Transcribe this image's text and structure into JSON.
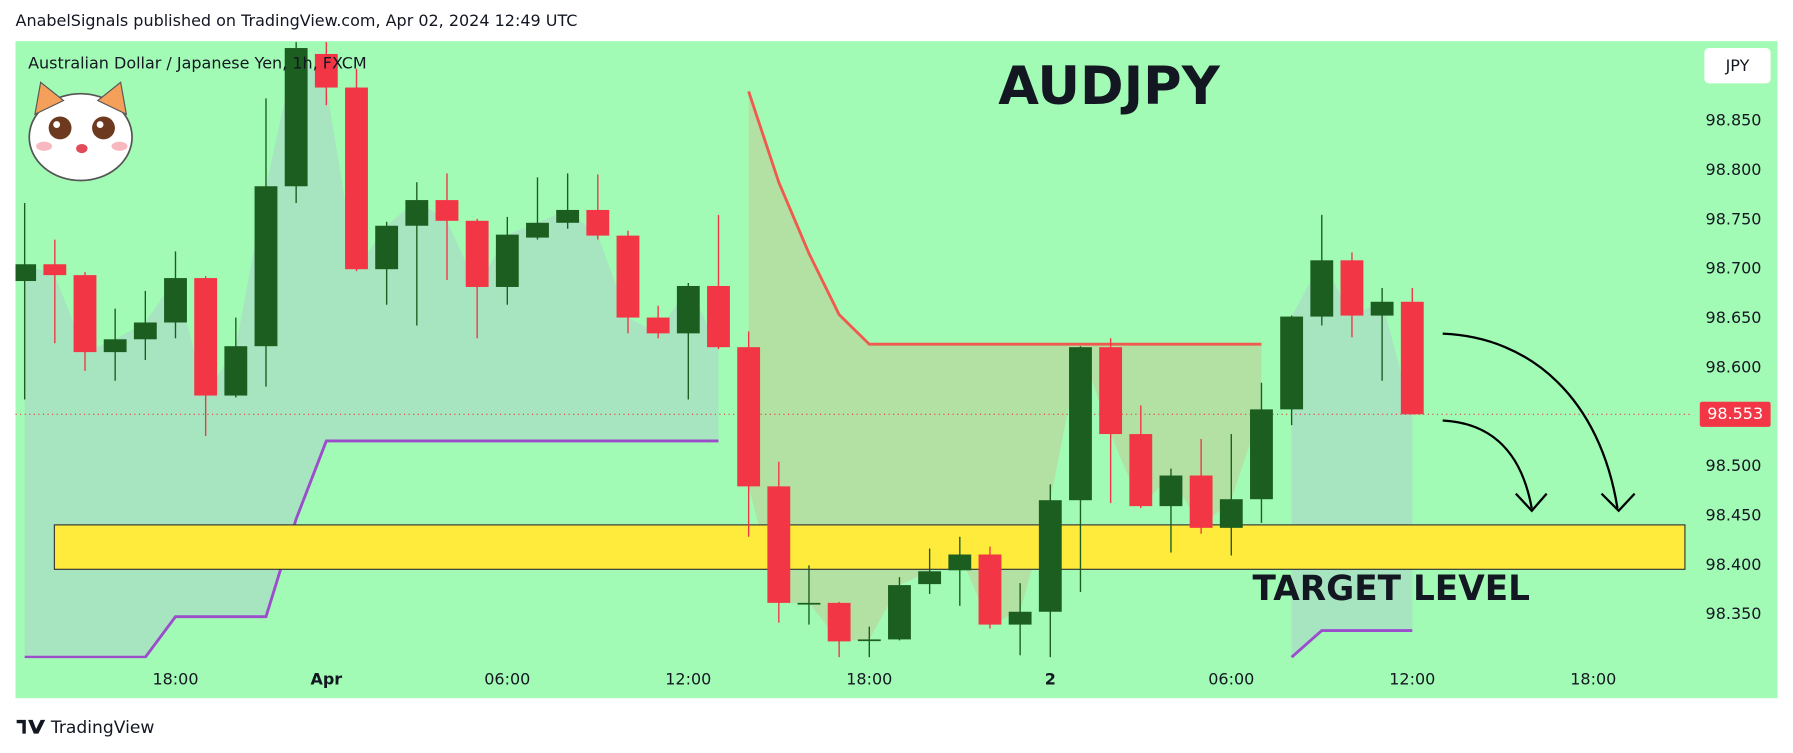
{
  "header": {
    "text": "AnabelSignals published on TradingView.com, Apr 02, 2024 12:49 UTC"
  },
  "footer": {
    "brand": "TradingView"
  },
  "chart_data": {
    "type": "candlestick",
    "title": "AUDJPY",
    "symbol": "Australian Dollar / Japanese Yen, 1h, FXCM",
    "currency": "JPY",
    "categories": [
      null,
      null,
      null,
      null,
      null,
      "18:00",
      null,
      null,
      null,
      null,
      "Apr",
      null,
      null,
      null,
      null,
      null,
      "06:00",
      null,
      null,
      null,
      null,
      null,
      "12:00",
      null,
      null,
      null,
      null,
      null,
      "18:00",
      null,
      null,
      null,
      null,
      null,
      "2",
      null,
      null,
      null,
      null,
      null,
      "06:00",
      null,
      null,
      null,
      null,
      null,
      "12:00",
      null,
      null,
      null,
      null,
      null,
      "18:00",
      null,
      null
    ],
    "open": [
      98.688,
      98.705,
      98.694,
      98.616,
      98.629,
      98.646,
      98.691,
      98.572,
      98.622,
      98.784,
      98.918,
      98.884,
      98.7,
      98.744,
      98.77,
      98.749,
      98.682,
      98.732,
      98.747,
      98.76,
      98.734,
      98.651,
      98.635,
      98.683,
      98.621,
      98.48,
      98.362,
      98.362,
      98.325,
      98.325,
      98.381,
      98.395,
      98.411,
      98.34,
      98.353,
      98.466,
      98.621,
      98.533,
      98.46,
      98.491,
      98.438,
      98.467,
      98.558,
      98.652,
      98.709,
      98.653,
      98.667,
      null,
      null,
      null,
      null,
      null,
      null,
      null,
      null
    ],
    "high": [
      98.767,
      98.73,
      98.697,
      98.66,
      98.678,
      98.718,
      98.693,
      98.651,
      98.873,
      98.93,
      98.93,
      98.903,
      98.748,
      98.788,
      98.797,
      98.751,
      98.753,
      98.793,
      98.797,
      98.796,
      98.739,
      98.663,
      98.686,
      98.755,
      98.637,
      98.505,
      98.4,
      98.363,
      98.338,
      98.388,
      98.417,
      98.429,
      98.419,
      98.382,
      98.482,
      98.622,
      98.63,
      98.562,
      98.498,
      98.528,
      98.533,
      98.585,
      98.653,
      98.755,
      98.717,
      98.681,
      98.681,
      null,
      null,
      null,
      null,
      null,
      null,
      null,
      null
    ],
    "low": [
      98.568,
      98.625,
      98.597,
      98.587,
      98.608,
      98.63,
      98.531,
      98.57,
      98.581,
      98.767,
      98.866,
      98.698,
      98.664,
      98.643,
      98.689,
      98.63,
      98.664,
      98.73,
      98.741,
      98.73,
      98.635,
      98.63,
      98.568,
      98.619,
      98.429,
      98.342,
      98.34,
      98.307,
      98.307,
      98.324,
      98.371,
      98.359,
      98.336,
      98.309,
      98.307,
      98.373,
      98.463,
      98.458,
      98.413,
      98.432,
      98.41,
      98.443,
      98.542,
      98.643,
      98.631,
      98.587,
      98.553,
      null,
      null,
      null,
      null,
      null,
      null,
      null,
      null
    ],
    "close": [
      98.705,
      98.694,
      98.616,
      98.629,
      98.646,
      98.691,
      98.572,
      98.622,
      98.784,
      98.924,
      98.884,
      98.7,
      98.744,
      98.77,
      98.749,
      98.682,
      98.735,
      98.747,
      98.76,
      98.734,
      98.651,
      98.635,
      98.683,
      98.621,
      98.48,
      98.362,
      98.362,
      98.323,
      98.325,
      98.38,
      98.394,
      98.411,
      98.34,
      98.353,
      98.466,
      98.621,
      98.533,
      98.46,
      98.491,
      98.438,
      98.467,
      98.558,
      98.652,
      98.709,
      98.653,
      98.667,
      98.553,
      null,
      null,
      null,
      null,
      null,
      null,
      null,
      null
    ],
    "up_color": "#1b5e20",
    "down_color": "#f23645",
    "indicators": [
      {
        "color": "#9c4dcc",
        "fill": "#a8dfc2",
        "values": [
          98.307,
          98.307,
          98.307,
          98.307,
          98.307,
          98.348,
          98.348,
          98.348,
          98.348,
          98.447,
          98.526,
          98.526,
          98.526,
          98.526,
          98.526,
          98.526,
          98.526,
          98.526,
          98.526,
          98.526,
          98.526,
          98.526,
          98.526,
          98.526,
          null,
          null,
          null,
          null,
          null,
          null,
          null,
          null,
          null,
          null,
          null,
          null,
          null,
          null,
          null,
          null,
          null,
          null,
          98.307,
          98.334,
          98.334,
          98.334,
          98.334,
          null,
          null,
          null,
          null,
          null,
          null,
          null,
          null
        ]
      },
      {
        "color": "#f05a4f",
        "fill": "#b5dca0",
        "values": [
          null,
          null,
          null,
          null,
          null,
          null,
          null,
          null,
          null,
          null,
          null,
          null,
          null,
          null,
          null,
          null,
          null,
          null,
          null,
          null,
          null,
          null,
          null,
          null,
          98.88,
          98.788,
          98.716,
          98.654,
          98.624,
          98.624,
          98.624,
          98.624,
          98.624,
          98.624,
          98.624,
          98.624,
          98.624,
          98.624,
          98.624,
          98.624,
          98.624,
          98.624,
          null,
          null,
          null,
          null,
          null,
          null,
          null,
          null,
          null,
          null,
          null,
          null,
          null
        ]
      }
    ],
    "last_price": 98.553,
    "target_zone": {
      "label": "TARGET LEVEL",
      "top": 98.441,
      "bottom": 98.396,
      "color": "#ffeb3b"
    },
    "ylim": [
      98.306,
      98.931
    ],
    "yticks": [
      {
        "value": 98.35,
        "label": "98.350"
      },
      {
        "value": 98.4,
        "label": "98.400"
      },
      {
        "value": 98.45,
        "label": "98.450"
      },
      {
        "value": 98.5,
        "label": "98.500"
      },
      {
        "value": 98.6,
        "label": "98.600"
      },
      {
        "value": 98.65,
        "label": "98.650"
      },
      {
        "value": 98.7,
        "label": "98.700"
      },
      {
        "value": 98.75,
        "label": "98.750"
      },
      {
        "value": 98.8,
        "label": "98.800"
      },
      {
        "value": 98.85,
        "label": "98.850"
      }
    ],
    "background": "#a2fbb5"
  }
}
